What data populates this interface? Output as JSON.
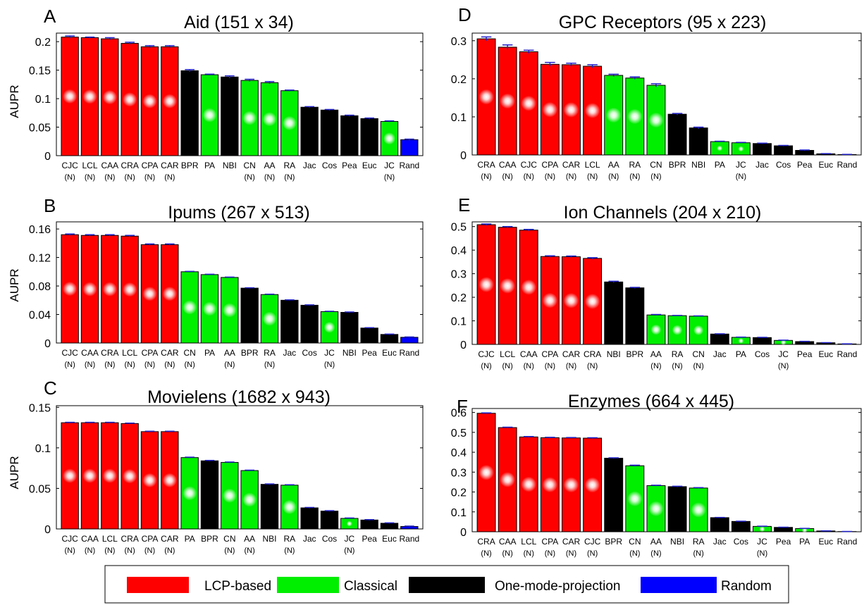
{
  "colors": {
    "lcp": "#ff0000",
    "classical": "#00ee00",
    "omp": "#000000",
    "random": "#0000ff",
    "error_bar": "#2222cc"
  },
  "legend": [
    {
      "label": "LCP-based",
      "color": "#ff0000"
    },
    {
      "label": "Classical",
      "color": "#00ee00"
    },
    {
      "label": "One-mode-projection",
      "color": "#000000"
    },
    {
      "label": "Random",
      "color": "#0000ff"
    }
  ],
  "chart_data": [
    {
      "type": "bar",
      "panel": "A",
      "title": "Aid (151 x 34)",
      "ylabel": "AUPR",
      "ylim": [
        0,
        0.215
      ],
      "yticks": [
        0,
        0.05,
        0.1,
        0.15,
        0.2
      ],
      "ytick_labels": [
        "0",
        "0.05",
        "0.1",
        "0.15",
        "0.2"
      ],
      "categories": [
        "CJC",
        "LCL",
        "CAA",
        "CRA",
        "CPA",
        "CAR",
        "BPR",
        "PA",
        "NBI",
        "CN",
        "AA",
        "RA",
        "Jac",
        "Cos",
        "Pea",
        "Euc",
        "JC",
        "Rand"
      ],
      "sublabels": [
        "(N)",
        "(N)",
        "(N)",
        "(N)",
        "(N)",
        "(N)",
        "",
        "",
        "",
        "(N)",
        "(N)",
        "(N)",
        "",
        "",
        "",
        "",
        "(N)",
        ""
      ],
      "groups": [
        "lcp",
        "lcp",
        "lcp",
        "lcp",
        "lcp",
        "lcp",
        "omp",
        "classical",
        "omp",
        "classical",
        "classical",
        "classical",
        "omp",
        "omp",
        "omp",
        "omp",
        "classical",
        "random"
      ],
      "values": [
        0.208,
        0.207,
        0.205,
        0.197,
        0.191,
        0.191,
        0.149,
        0.142,
        0.138,
        0.132,
        0.128,
        0.114,
        0.085,
        0.08,
        0.07,
        0.065,
        0.06,
        0.028
      ],
      "errors": [
        0.002,
        0.001,
        0.002,
        0.002,
        0.002,
        0.002,
        0.002,
        0.001,
        0.002,
        0.002,
        0.002,
        0.001,
        0.001,
        0.001,
        0.001,
        0.001,
        0.001,
        0.001
      ]
    },
    {
      "type": "bar",
      "panel": "B",
      "title": "Ipums (267 x 513)",
      "ylabel": "AUPR",
      "ylim": [
        0,
        0.17
      ],
      "yticks": [
        0,
        0.04,
        0.08,
        0.12,
        0.16
      ],
      "ytick_labels": [
        "0",
        "0.04",
        "0.08",
        "0.12",
        "0.16"
      ],
      "categories": [
        "CJC",
        "CAA",
        "CRA",
        "LCL",
        "CPA",
        "CAR",
        "CN",
        "PA",
        "AA",
        "BPR",
        "RA",
        "Jac",
        "Cos",
        "JC",
        "NBI",
        "Pea",
        "Euc",
        "Rand"
      ],
      "sublabels": [
        "(N)",
        "(N)",
        "(N)",
        "(N)",
        "(N)",
        "(N)",
        "(N)",
        "",
        "(N)",
        "",
        "(N)",
        "",
        "",
        "(N)",
        "",
        "",
        "",
        ""
      ],
      "groups": [
        "lcp",
        "lcp",
        "lcp",
        "lcp",
        "lcp",
        "lcp",
        "classical",
        "classical",
        "classical",
        "omp",
        "classical",
        "omp",
        "omp",
        "classical",
        "omp",
        "omp",
        "omp",
        "random"
      ],
      "values": [
        0.152,
        0.151,
        0.151,
        0.15,
        0.138,
        0.138,
        0.1,
        0.096,
        0.092,
        0.077,
        0.068,
        0.06,
        0.053,
        0.044,
        0.043,
        0.021,
        0.012,
        0.008
      ],
      "errors": [
        0.001,
        0.001,
        0.001,
        0.001,
        0.001,
        0.001,
        0.0005,
        0.0005,
        0.0005,
        0.0005,
        0.0005,
        0.0005,
        0.0005,
        0.0005,
        0.0005,
        0.0005,
        0.0005,
        0.0005
      ]
    },
    {
      "type": "bar",
      "panel": "C",
      "title": "Movielens (1682 x 943)",
      "ylabel": "AUPR",
      "ylim": [
        0,
        0.152
      ],
      "yticks": [
        0,
        0.05,
        0.1,
        0.15
      ],
      "ytick_labels": [
        "0",
        "0.05",
        "0.1",
        "0.15"
      ],
      "categories": [
        "CJC",
        "CAA",
        "LCL",
        "CRA",
        "CPA",
        "CAR",
        "PA",
        "BPR",
        "CN",
        "AA",
        "NBI",
        "RA",
        "Jac",
        "Cos",
        "JC",
        "Pea",
        "Euc",
        "Rand"
      ],
      "sublabels": [
        "(N)",
        "(N)",
        "(N)",
        "(N)",
        "(N)",
        "(N)",
        "",
        "",
        "(N)",
        "(N)",
        "",
        "(N)",
        "",
        "",
        "(N)",
        "",
        "",
        ""
      ],
      "groups": [
        "lcp",
        "lcp",
        "lcp",
        "lcp",
        "lcp",
        "lcp",
        "classical",
        "omp",
        "classical",
        "classical",
        "omp",
        "classical",
        "omp",
        "omp",
        "classical",
        "omp",
        "omp",
        "random"
      ],
      "values": [
        0.131,
        0.131,
        0.131,
        0.13,
        0.12,
        0.12,
        0.088,
        0.084,
        0.082,
        0.072,
        0.055,
        0.054,
        0.026,
        0.022,
        0.013,
        0.011,
        0.007,
        0.003
      ],
      "errors": [
        0.0005,
        0.0005,
        0.0005,
        0.0005,
        0.0005,
        0.0005,
        0.0005,
        0.0005,
        0.0005,
        0.0005,
        0.0005,
        0.0005,
        0.0005,
        0.0005,
        0.0005,
        0.0005,
        0.0005,
        0.0005
      ]
    },
    {
      "type": "bar",
      "panel": "D",
      "title": "GPC Receptors (95 x 223)",
      "ylabel": "",
      "ylim": [
        0,
        0.32
      ],
      "yticks": [
        0,
        0.1,
        0.2,
        0.3
      ],
      "ytick_labels": [
        "0",
        "0.1",
        "0.2",
        "0.3"
      ],
      "categories": [
        "CRA",
        "CAA",
        "CJC",
        "CPA",
        "CAR",
        "LCL",
        "AA",
        "RA",
        "CN",
        "BPR",
        "NBI",
        "PA",
        "JC",
        "Jac",
        "Cos",
        "Pea",
        "Euc",
        "Rand"
      ],
      "sublabels": [
        "(N)",
        "(N)",
        "(N)",
        "(N)",
        "(N)",
        "(N)",
        "(N)",
        "(N)",
        "(N)",
        "",
        "",
        "",
        "(N)",
        "",
        "",
        "",
        "",
        ""
      ],
      "groups": [
        "lcp",
        "lcp",
        "lcp",
        "lcp",
        "lcp",
        "lcp",
        "classical",
        "classical",
        "classical",
        "omp",
        "omp",
        "classical",
        "classical",
        "omp",
        "omp",
        "omp",
        "omp",
        "random"
      ],
      "values": [
        0.305,
        0.283,
        0.271,
        0.238,
        0.237,
        0.233,
        0.209,
        0.202,
        0.183,
        0.107,
        0.071,
        0.035,
        0.032,
        0.03,
        0.024,
        0.012,
        0.003,
        0.001
      ],
      "errors": [
        0.005,
        0.006,
        0.004,
        0.005,
        0.004,
        0.004,
        0.003,
        0.003,
        0.004,
        0.002,
        0.002,
        0.001,
        0.001,
        0.001,
        0.001,
        0.001,
        0.0005,
        0.0005
      ]
    },
    {
      "type": "bar",
      "panel": "E",
      "title": "Ion Channels (204 x 210)",
      "ylabel": "",
      "ylim": [
        0,
        0.52
      ],
      "yticks": [
        0,
        0.1,
        0.2,
        0.3,
        0.4,
        0.5
      ],
      "ytick_labels": [
        "0",
        "0.1",
        "0.2",
        "0.3",
        "0.4",
        "0.5"
      ],
      "categories": [
        "CJC",
        "LCL",
        "CAA",
        "CPA",
        "CAR",
        "CRA",
        "NBI",
        "BPR",
        "AA",
        "RA",
        "CN",
        "Jac",
        "PA",
        "Cos",
        "JC",
        "Pea",
        "Euc",
        "Rand"
      ],
      "sublabels": [
        "(N)",
        "(N)",
        "(N)",
        "(N)",
        "(N)",
        "(N)",
        "",
        "",
        "(N)",
        "(N)",
        "(N)",
        "",
        "",
        "",
        "(N)",
        "",
        "",
        ""
      ],
      "groups": [
        "lcp",
        "lcp",
        "lcp",
        "lcp",
        "lcp",
        "lcp",
        "omp",
        "omp",
        "classical",
        "classical",
        "classical",
        "omp",
        "classical",
        "omp",
        "classical",
        "omp",
        "omp",
        "random"
      ],
      "values": [
        0.508,
        0.497,
        0.485,
        0.373,
        0.372,
        0.365,
        0.265,
        0.24,
        0.125,
        0.122,
        0.12,
        0.044,
        0.03,
        0.029,
        0.017,
        0.012,
        0.007,
        0.002
      ],
      "errors": [
        0.003,
        0.003,
        0.003,
        0.003,
        0.003,
        0.003,
        0.003,
        0.002,
        0.002,
        0.001,
        0.001,
        0.001,
        0.001,
        0.001,
        0.001,
        0.001,
        0.0005,
        0.0005
      ]
    },
    {
      "type": "bar",
      "panel": "F",
      "title": "Enzymes (664 x 445)",
      "ylabel": "",
      "ylim": [
        0,
        0.62
      ],
      "yticks": [
        0,
        0.1,
        0.2,
        0.3,
        0.4,
        0.5,
        0.6
      ],
      "ytick_labels": [
        "0",
        "0.1",
        "0.2",
        "0.3",
        "0.4",
        "0.5",
        "0.6"
      ],
      "categories": [
        "CRA",
        "CAA",
        "LCL",
        "CPA",
        "CAR",
        "CJC",
        "BPR",
        "CN",
        "AA",
        "NBI",
        "RA",
        "Jac",
        "Cos",
        "JC",
        "Pea",
        "PA",
        "Euc",
        "Rand"
      ],
      "sublabels": [
        "(N)",
        "(N)",
        "(N)",
        "(N)",
        "(N)",
        "(N)",
        "",
        "(N)",
        "(N)",
        "",
        "(N)",
        "",
        "",
        "(N)",
        "",
        "",
        "",
        ""
      ],
      "groups": [
        "lcp",
        "lcp",
        "lcp",
        "lcp",
        "lcp",
        "lcp",
        "omp",
        "classical",
        "classical",
        "omp",
        "classical",
        "omp",
        "omp",
        "classical",
        "omp",
        "classical",
        "omp",
        "random"
      ],
      "values": [
        0.596,
        0.524,
        0.477,
        0.473,
        0.472,
        0.471,
        0.37,
        0.332,
        0.232,
        0.227,
        0.22,
        0.071,
        0.052,
        0.027,
        0.022,
        0.016,
        0.004,
        0.001
      ],
      "errors": [
        0.002,
        0.002,
        0.002,
        0.002,
        0.002,
        0.002,
        0.002,
        0.003,
        0.002,
        0.002,
        0.002,
        0.001,
        0.001,
        0.001,
        0.001,
        0.001,
        0.0005,
        0.0005
      ]
    }
  ]
}
